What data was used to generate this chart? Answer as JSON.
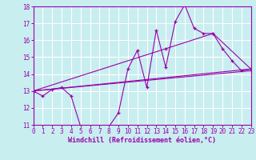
{
  "xlabel": "Windchill (Refroidissement éolien,°C)",
  "bg_color": "#c8eef0",
  "line_color": "#9900aa",
  "grid_color": "#ffffff",
  "xmin": 0,
  "xmax": 23,
  "ymin": 11,
  "ymax": 18,
  "series1_x": [
    0,
    1,
    2,
    3,
    4,
    5,
    6,
    7,
    8,
    9,
    10,
    11,
    12,
    13,
    14,
    15,
    16,
    17,
    18,
    19,
    20,
    21,
    22,
    23
  ],
  "series1_y": [
    13.0,
    12.7,
    13.1,
    13.2,
    12.7,
    10.9,
    10.7,
    10.9,
    10.9,
    11.7,
    14.3,
    15.4,
    13.2,
    16.6,
    14.4,
    17.1,
    18.1,
    16.7,
    16.4,
    16.4,
    15.5,
    14.8,
    14.2,
    14.3
  ],
  "series2_x": [
    0,
    23
  ],
  "series2_y": [
    13.0,
    14.3
  ],
  "series3_x": [
    0,
    23
  ],
  "series3_y": [
    13.0,
    14.2
  ],
  "series4_x": [
    0,
    14,
    19,
    23
  ],
  "series4_y": [
    13.0,
    15.5,
    16.4,
    14.3
  ],
  "tick_fontsize": 5.5,
  "label_fontsize": 6.0
}
